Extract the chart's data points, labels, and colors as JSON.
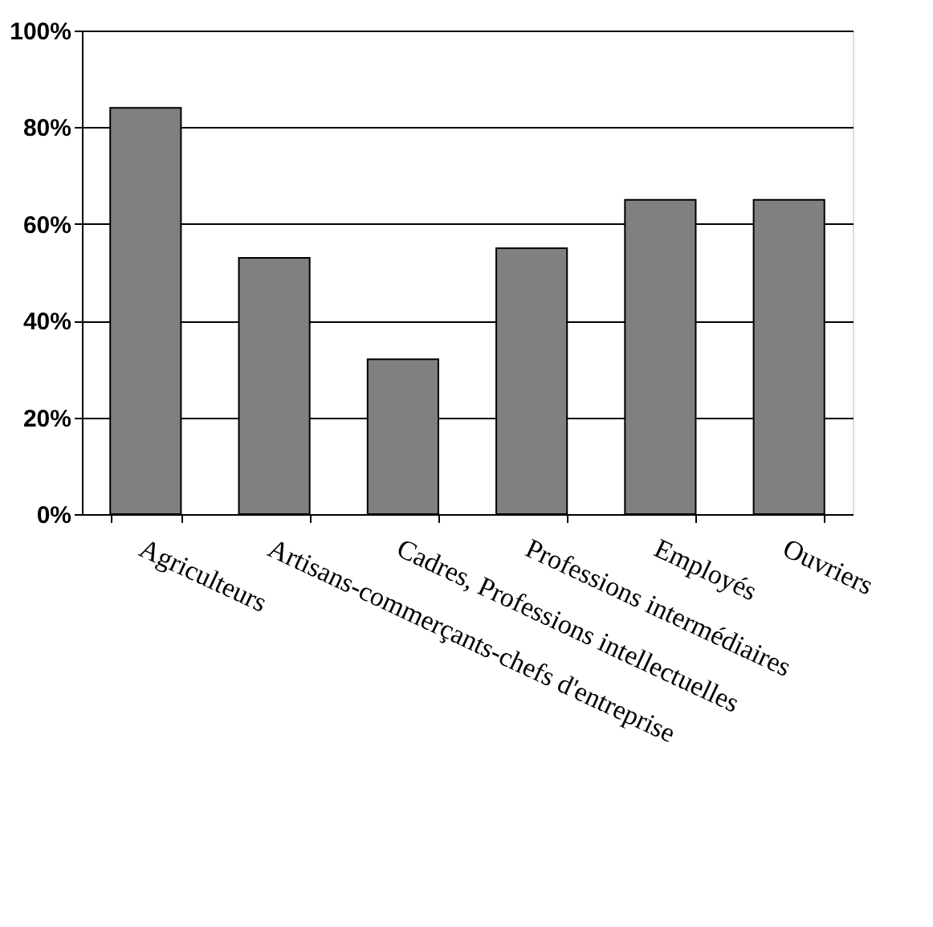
{
  "chart_data": {
    "type": "bar",
    "categories": [
      "Agriculteurs",
      "Artisans-commerçants-chefs d'entreprise",
      "Cadres, Professions intellectuelles",
      "Professions intermédiaires",
      "Employés",
      "Ouvriers"
    ],
    "values": [
      84,
      53,
      32,
      55,
      65,
      65
    ],
    "color": "#808080",
    "ylim": [
      0,
      100
    ],
    "yticks": [
      {
        "value": 0,
        "label": "0%"
      },
      {
        "value": 20,
        "label": "20%"
      },
      {
        "value": 40,
        "label": "40%"
      },
      {
        "value": 60,
        "label": "60%"
      },
      {
        "value": 80,
        "label": "80%"
      },
      {
        "value": 100,
        "label": "100%"
      }
    ],
    "grid": "y"
  }
}
